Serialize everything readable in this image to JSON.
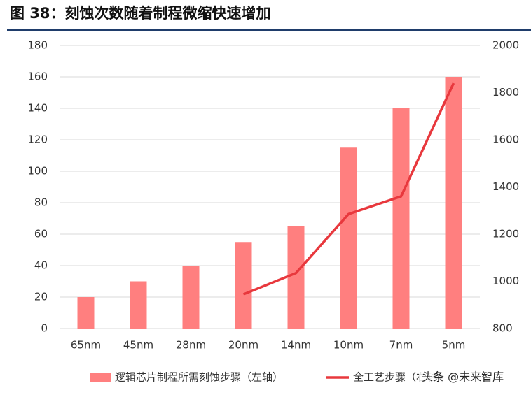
{
  "chart_data": {
    "type": "bar-line",
    "title": "图 38：刻蚀次数随着制程微缩快速增加",
    "categories": [
      "65nm",
      "45nm",
      "28nm",
      "20nm",
      "14nm",
      "10nm",
      "7nm",
      "5nm"
    ],
    "series": [
      {
        "name": "逻辑芯片制程所需刻蚀步骤（左轴）",
        "type": "bar",
        "color": "#ff7f7f",
        "values": [
          20,
          30,
          40,
          55,
          65,
          115,
          140,
          160
        ]
      },
      {
        "name": "全工艺步骤（右轴）",
        "type": "line",
        "axis": "y2",
        "color": "#e8383d",
        "values": [
          null,
          null,
          null,
          945,
          1035,
          1285,
          1360,
          1840
        ]
      }
    ],
    "ylim": [
      0,
      180
    ],
    "yticks": [
      0,
      20,
      40,
      60,
      80,
      100,
      120,
      140,
      160,
      180
    ],
    "y2lim": [
      800,
      2000
    ],
    "y2ticks": [
      800,
      1000,
      1200,
      1400,
      1600,
      1800,
      2000
    ],
    "grid": true,
    "legend": "bottom",
    "watermark": "头条 @未来智库"
  }
}
